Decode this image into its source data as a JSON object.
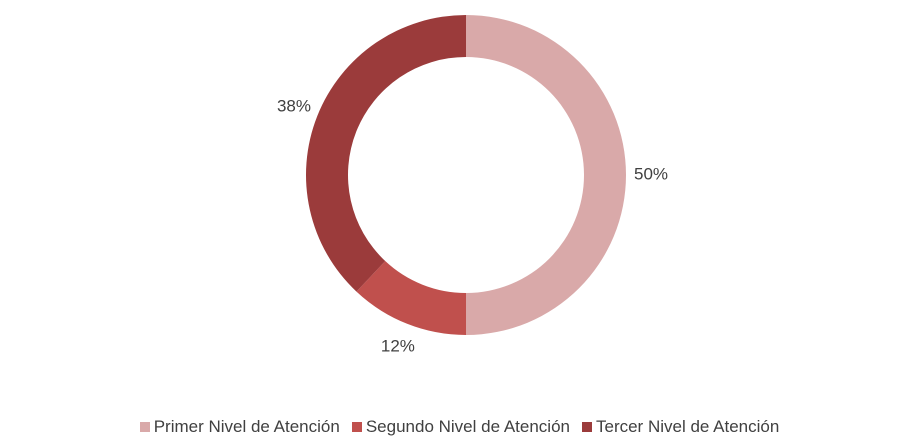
{
  "chart_data": {
    "type": "donut",
    "categories": [
      "Primer Nivel de Atención",
      "Segundo Nivel de Atención",
      "Tercer Nivel de Atención"
    ],
    "values": [
      50,
      12,
      38
    ],
    "value_labels": [
      "50%",
      "12%",
      "38%"
    ],
    "colors": [
      "#d9a9a9",
      "#c0504d",
      "#9b3b3b"
    ],
    "legend": "bottom"
  }
}
